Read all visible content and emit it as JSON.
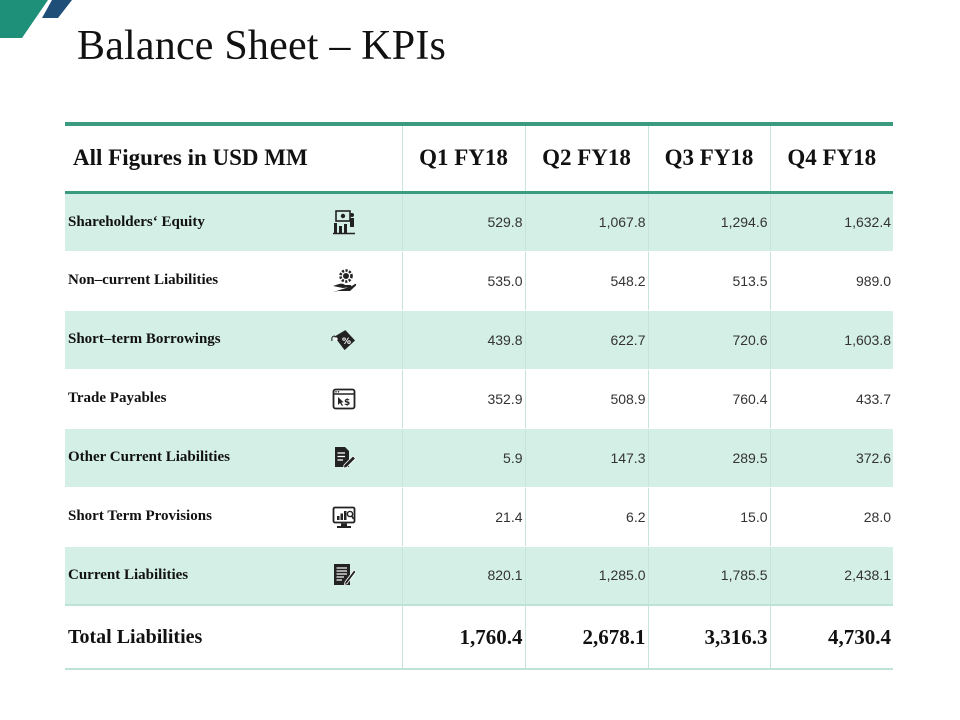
{
  "slide": {
    "title": "Balance Sheet – KPIs",
    "accent_color": "#3a9b7e",
    "shade_color": "#d4efe6",
    "corner_colors": [
      "#1e8f78",
      "#1f4e79"
    ]
  },
  "table": {
    "header_label": "All Figures in USD MM",
    "columns": [
      "Q1 FY18",
      "Q2 FY18",
      "Q3 FY18",
      "Q4 FY18"
    ],
    "rows": [
      {
        "label": "Shareholders‘ Equity",
        "icon": "presenter-board-icon",
        "values": [
          "529.8",
          "1,067.8",
          "1,294.6",
          "1,632.4"
        ]
      },
      {
        "label": "Non–current Liabilities",
        "icon": "hand-gear-dollar-icon",
        "values": [
          "535.0",
          "548.2",
          "513.5",
          "989.0"
        ]
      },
      {
        "label": "Short–term Borrowings",
        "icon": "percent-tag-icon",
        "values": [
          "439.8",
          "622.7",
          "720.6",
          "1,603.8"
        ]
      },
      {
        "label": "Trade Payables",
        "icon": "browser-dollar-icon",
        "values": [
          "352.9",
          "508.9",
          "760.4",
          "433.7"
        ]
      },
      {
        "label": "Other Current Liabilities",
        "icon": "document-pen-icon",
        "values": [
          "5.9",
          "147.3",
          "289.5",
          "372.6"
        ]
      },
      {
        "label": "Short Term Provisions",
        "icon": "monitor-chart-icon",
        "values": [
          "21.4",
          "6.2",
          "15.0",
          "28.0"
        ]
      },
      {
        "label": "Current Liabilities",
        "icon": "form-pen-icon",
        "values": [
          "820.1",
          "1,285.0",
          "1,785.5",
          "2,438.1"
        ]
      }
    ],
    "total": {
      "label": "Total Liabilities",
      "values": [
        "1,760.4",
        "2,678.1",
        "3,316.3",
        "4,730.4"
      ]
    }
  }
}
